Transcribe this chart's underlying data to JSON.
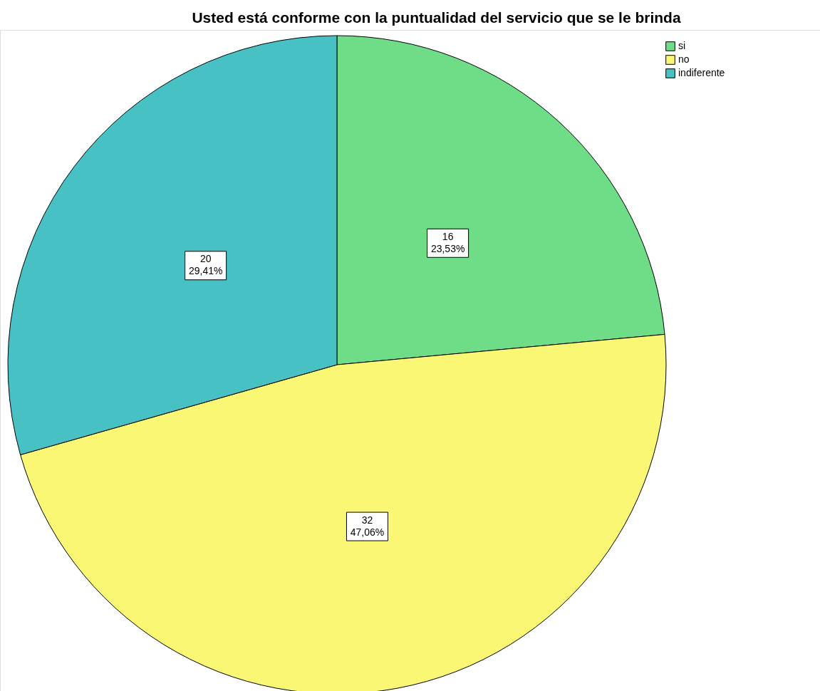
{
  "chart_data": {
    "type": "pie",
    "title": "Usted está conforme con la puntualidad del servicio que se le brinda",
    "categories": [
      "si",
      "no",
      "indiferente"
    ],
    "values": [
      16,
      32,
      20
    ],
    "colors": [
      "#6fdc87",
      "#f9f774",
      "#48c1c4"
    ],
    "value_labels": [
      "16\n23,53%",
      "32\n47,06%",
      "20\n29,41%"
    ],
    "legend": "top right"
  }
}
